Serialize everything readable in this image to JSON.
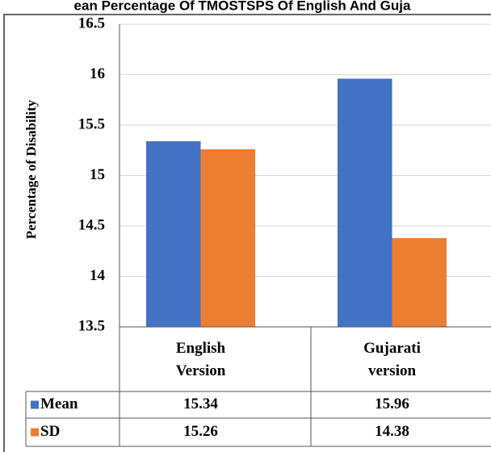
{
  "chart_data": {
    "type": "bar",
    "title": "ean Percentage Of TMOSTSPS Of English And Guja",
    "y_label": "Percentage of Disability",
    "categories": [
      "English Version",
      "Gujarati version"
    ],
    "series": [
      {
        "name": "Mean",
        "color": "#4472c4",
        "values": [
          15.34,
          15.96
        ]
      },
      {
        "name": "SD",
        "color": "#ed7d31",
        "values": [
          15.26,
          14.38
        ]
      }
    ],
    "ylim": [
      13.5,
      16.5
    ],
    "yticks": [
      13.5,
      14,
      14.5,
      15,
      15.5,
      16,
      16.5
    ],
    "grid": true
  }
}
